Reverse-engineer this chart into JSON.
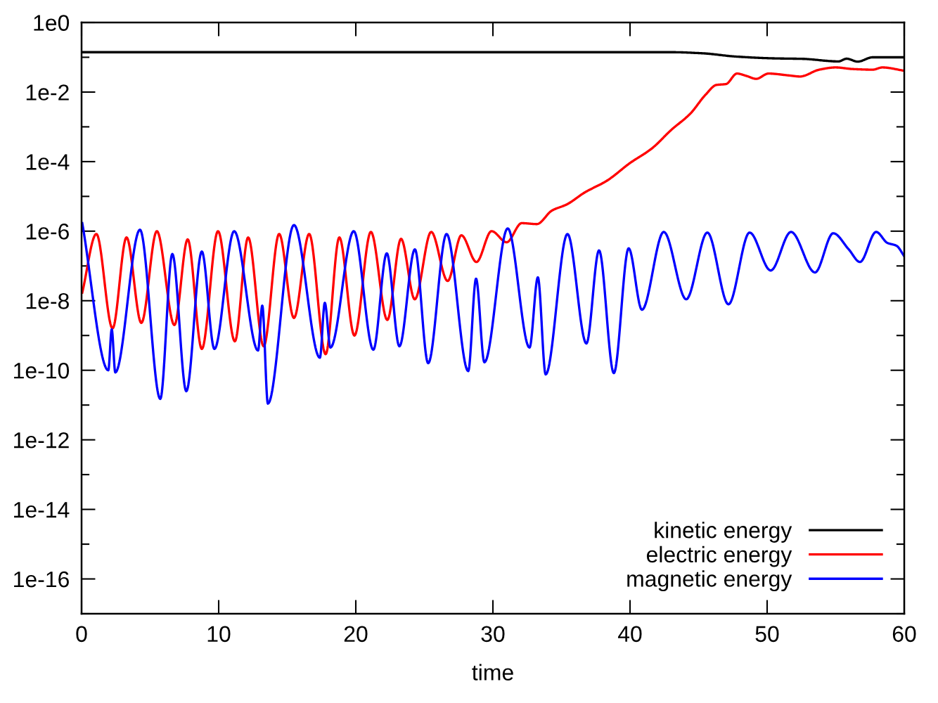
{
  "chart_data": {
    "type": "line",
    "xlabel": "time",
    "log": "y",
    "grid": false,
    "legend": "bottom right",
    "marker": "none",
    "line_style": "solid",
    "xlim": [
      0,
      60
    ],
    "xticks": [
      0,
      10,
      20,
      30,
      40,
      50,
      60
    ],
    "ylim": [
      1e-17,
      1
    ],
    "yticks": [
      {
        "value": 1,
        "label": "1e0"
      },
      {
        "value": 0.1,
        "label": null
      },
      {
        "value": 0.01,
        "label": "1e-2"
      },
      {
        "value": 0.001,
        "label": null
      },
      {
        "value": 0.0001,
        "label": "1e-4"
      },
      {
        "value": 1e-05,
        "label": null
      },
      {
        "value": 1e-06,
        "label": "1e-6"
      },
      {
        "value": 1e-07,
        "label": null
      },
      {
        "value": 1e-08,
        "label": "1e-8"
      },
      {
        "value": 1e-09,
        "label": null
      },
      {
        "value": 1e-10,
        "label": "1e-10"
      },
      {
        "value": 1e-11,
        "label": null
      },
      {
        "value": 1e-12,
        "label": "1e-12"
      },
      {
        "value": 1e-13,
        "label": null
      },
      {
        "value": 1e-14,
        "label": "1e-14"
      },
      {
        "value": 1e-15,
        "label": null
      },
      {
        "value": 1e-16,
        "label": "1e-16"
      },
      {
        "value": 1e-17,
        "label": null
      }
    ],
    "series": [
      {
        "name": "kinetic energy",
        "color": "#000000",
        "x": [
          0,
          20,
          40,
          43.0,
          45.3,
          47.7,
          50.5,
          52.6,
          55.2,
          55.8,
          56.6,
          57.7,
          60
        ],
        "values": [
          0.14,
          0.14,
          0.14,
          0.14,
          0.13,
          0.105,
          0.093,
          0.09,
          0.076,
          0.091,
          0.075,
          0.1,
          0.1
        ]
      },
      {
        "name": "electric energy",
        "color": "#ff0000",
        "x": [
          0.05,
          1.08,
          2.26,
          3.28,
          4.36,
          5.49,
          6.77,
          7.74,
          8.77,
          9.95,
          11.18,
          12.15,
          13.28,
          14.41,
          15.49,
          16.6,
          17.8,
          18.8,
          19.9,
          21.1,
          22.3,
          23.3,
          24.3,
          25.5,
          26.7,
          27.7,
          28.8,
          29.9,
          31.0,
          32.1,
          33.2,
          34.3,
          35.4,
          36.7,
          38.3,
          40.0,
          41.6,
          43.0,
          44.4,
          45.5,
          46.3,
          47.0,
          47.8,
          48.5,
          49.2,
          50.1,
          51.6,
          52.4,
          53.8,
          55.0,
          56.2,
          57.7,
          58.4,
          60
        ],
        "values": [
          1.7e-08,
          8.3e-07,
          1.6e-09,
          6.6e-07,
          2.3e-09,
          1e-06,
          2e-09,
          5.8e-07,
          4.1e-10,
          1e-06,
          6.8e-10,
          6.6e-07,
          4.9e-10,
          8.3e-07,
          3.2e-09,
          8.3e-07,
          2.9e-10,
          6.6e-07,
          1e-09,
          9.5e-07,
          2.8e-09,
          6e-07,
          1.1e-08,
          9.5e-07,
          3.7e-08,
          7.6e-07,
          1.3e-07,
          1e-06,
          4.8e-07,
          1.7e-06,
          1.6e-06,
          3.9e-06,
          5.9e-06,
          1.3e-05,
          2.8e-05,
          9.1e-05,
          0.00024,
          0.00081,
          0.0024,
          0.0083,
          0.016,
          0.017,
          0.034,
          0.029,
          0.024,
          0.034,
          0.03,
          0.028,
          0.044,
          0.051,
          0.046,
          0.044,
          0.051,
          0.041
        ]
      },
      {
        "name": "magnetic energy",
        "color": "#0000ff",
        "x": [
          0.05,
          1.95,
          2.2,
          2.46,
          4.26,
          5.74,
          6.62,
          7.64,
          8.77,
          9.69,
          11.13,
          12.87,
          13.18,
          13.59,
          15.49,
          17.38,
          17.74,
          18.15,
          19.85,
          21.28,
          22.26,
          23.18,
          24.31,
          25.28,
          26.62,
          28.2,
          28.77,
          29.38,
          31.08,
          32.67,
          33.28,
          33.85,
          35.44,
          36.82,
          37.74,
          38.82,
          39.9,
          40.87,
          42.46,
          44.1,
          45.64,
          47.18,
          48.72,
          50.26,
          51.74,
          53.49,
          54.82,
          55.95,
          56.77,
          57.95,
          58.77,
          59.44,
          60
        ],
        "values": [
          1.7e-06,
          1e-10,
          1.5e-09,
          8.7e-11,
          1.1e-06,
          1.5e-11,
          2.2e-07,
          2.5e-11,
          2.6e-07,
          4.1e-10,
          1e-06,
          3.7e-10,
          7.2e-09,
          1.1e-11,
          1.5e-06,
          2.3e-10,
          8.7e-09,
          4.5e-10,
          1e-06,
          3.9e-10,
          2.3e-07,
          4.9e-10,
          3e-07,
          1.6e-10,
          8.3e-07,
          9.5e-11,
          4.3e-08,
          1.7e-10,
          1.2e-06,
          4.5e-10,
          4.7e-08,
          7.6e-11,
          8.3e-07,
          5.9e-10,
          2.8e-07,
          8.3e-11,
          3.2e-07,
          5.5e-09,
          9.5e-07,
          1.1e-08,
          9.1e-07,
          7.9e-09,
          9.1e-07,
          7.4e-08,
          9.5e-07,
          6.5e-08,
          8.7e-07,
          3e-07,
          1.3e-07,
          9.5e-07,
          4.6e-07,
          3.8e-07,
          1.9e-07
        ]
      }
    ]
  }
}
